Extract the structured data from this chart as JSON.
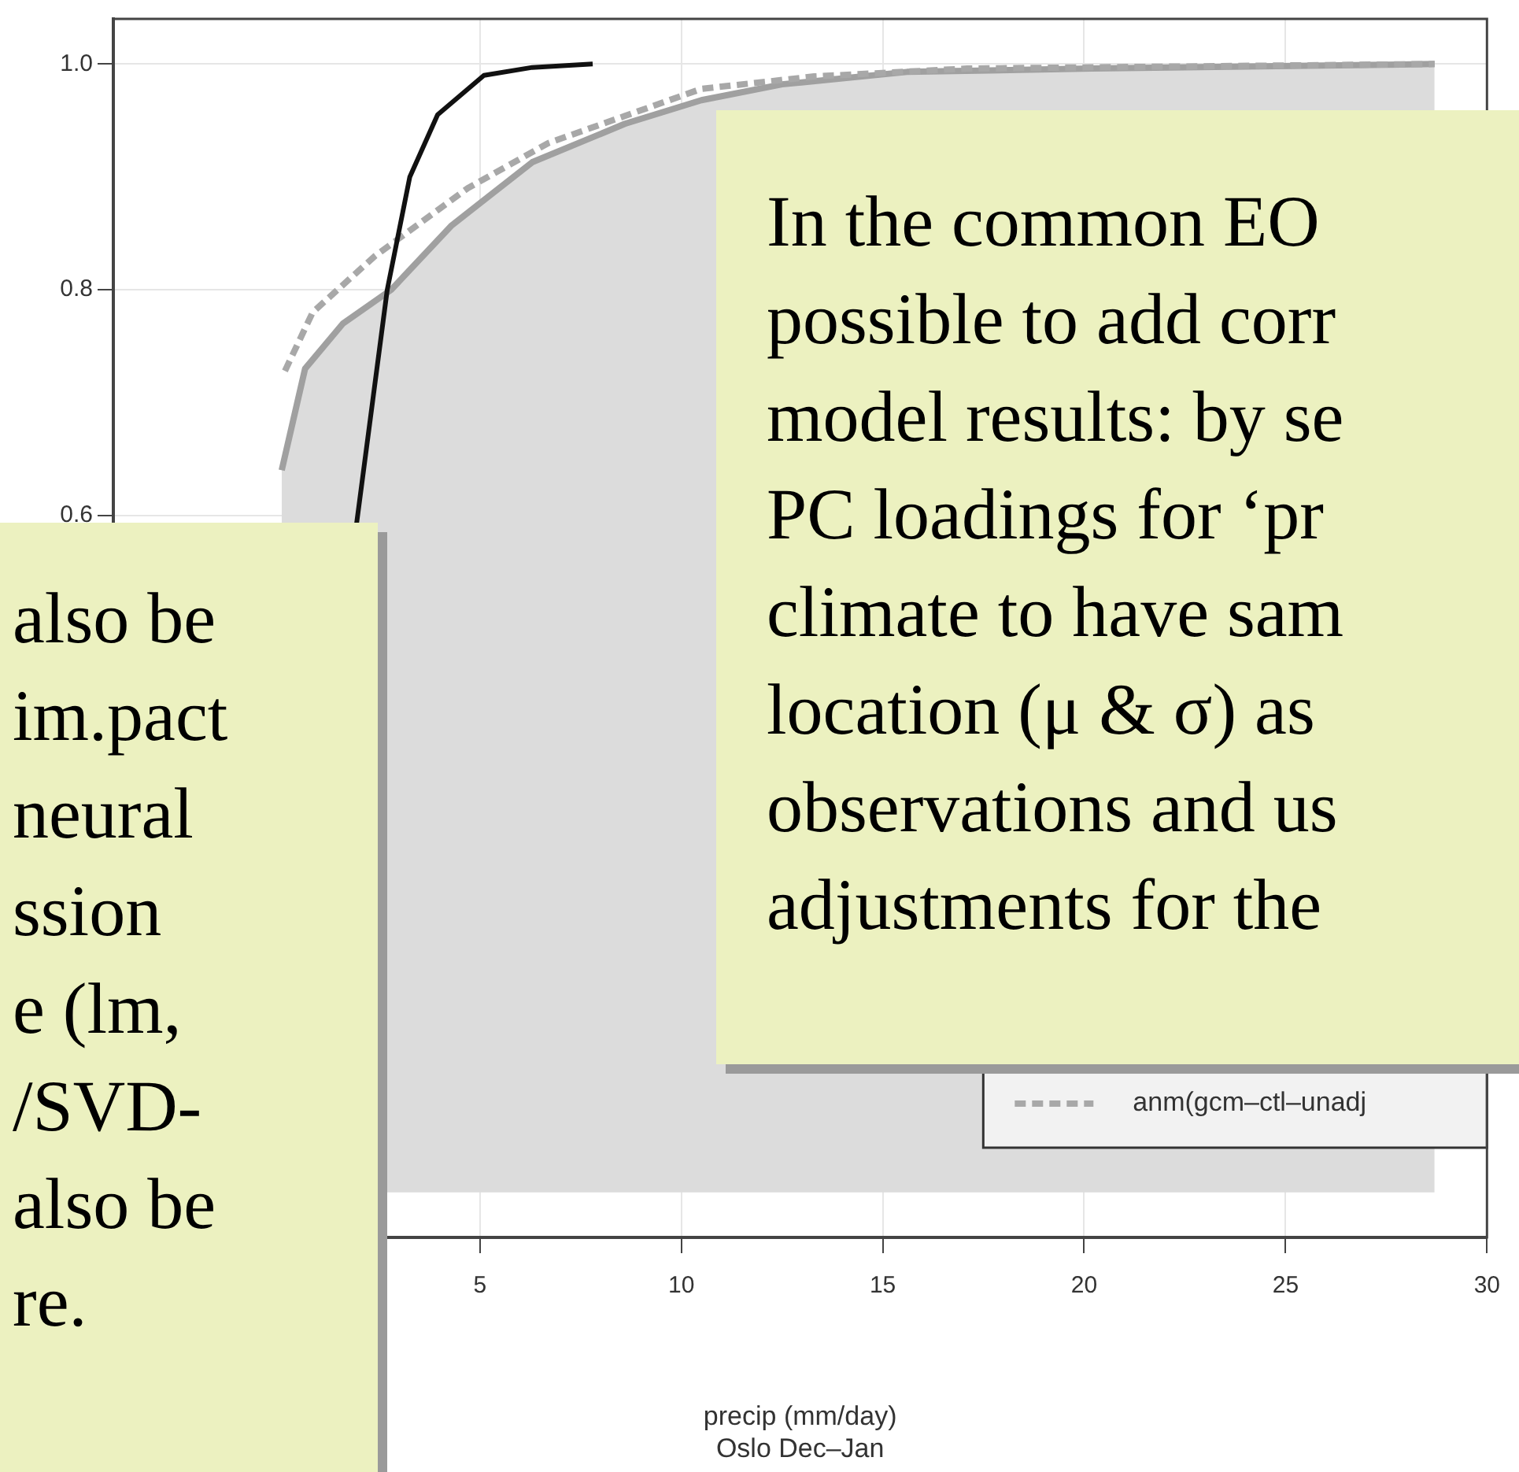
{
  "chart_data": {
    "type": "line",
    "xlabel": "precip (mm/day)\nOslo Dec–Jan",
    "xlim": [
      -4.1,
      30
    ],
    "xticks": [
      5,
      10,
      15,
      20,
      25,
      30
    ],
    "ylim": [
      -0.04,
      1.04
    ],
    "yticks": [
      {
        "value": 0.6,
        "label": "0.6"
      },
      {
        "value": 0.8,
        "label": "0.8"
      },
      {
        "value": 1,
        "label": "1.0"
      }
    ],
    "grid": true,
    "legend": "bottom right",
    "marker": "none",
    "series": [
      {
        "type": "area",
        "color": "#a0a0a0",
        "line_style": "solid",
        "x": [
          0.08,
          0.66,
          1.6,
          2.8,
          4.3,
          6.3,
          8.6,
          10.5,
          12.5,
          15.6,
          20.2,
          28.7
        ],
        "values": [
          0.64,
          0.73,
          0.77,
          0.8,
          0.857,
          0.913,
          0.947,
          0.968,
          0.982,
          0.993,
          0.996,
          1.0
        ]
      },
      {
        "name": "anm(gcm–ctl–unadj",
        "type": "line",
        "color": "#a8a8a8",
        "line_style": "dashed",
        "x": [
          0.16,
          0.85,
          2.4,
          4.7,
          6.7,
          8.6,
          10.5,
          13.3,
          17.1,
          28.7
        ],
        "values": [
          0.728,
          0.78,
          0.83,
          0.89,
          0.93,
          0.954,
          0.978,
          0.989,
          0.996,
          1.0
        ]
      },
      {
        "type": "line",
        "color": "#111111",
        "line_style": "solid",
        "x": [
          1.94,
          2.7,
          3.26,
          3.95,
          5.1,
          6.3,
          7.8
        ],
        "values": [
          0.593,
          0.8,
          0.9,
          0.955,
          0.99,
          0.997,
          1.0
        ]
      }
    ],
    "annotations": [
      "also be\nim.pact\nneural\nssion\ne (lm,\n/SVD-\nalso be\nre.",
      "In the common EO\npossible to add corr\nmodel results: by se\nPC loadings for ‘pr\nclimate to have sam\nlocation (μ & σ) as\nobservations and us\nadjustments for the"
    ]
  }
}
